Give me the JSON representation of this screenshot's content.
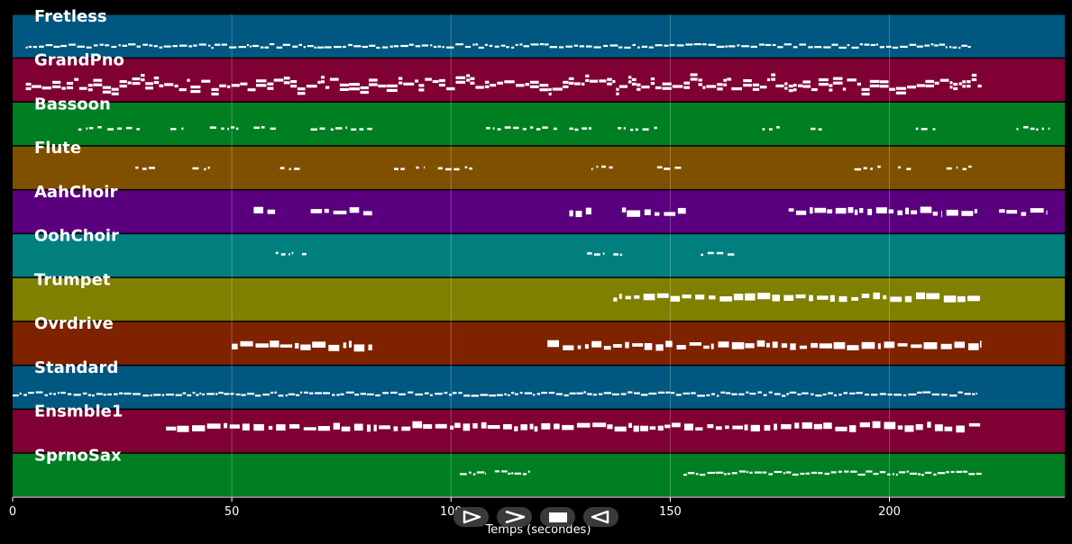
{
  "chart_data": {
    "type": "piano-roll",
    "xlabel": "Temps (secondes)",
    "xlim": [
      0,
      240
    ],
    "x_ticks": [
      0,
      50,
      100,
      150,
      200
    ],
    "grid": true,
    "tracks": [
      {
        "name": "Fretless",
        "color": "#00577f",
        "bands": [
          [
            3,
            219
          ]
        ],
        "style": "thin",
        "lane": 0.72
      },
      {
        "name": "GrandPno",
        "color": "#7f0033",
        "bands": [
          [
            3,
            221
          ]
        ],
        "style": "dense",
        "lane": 0.6
      },
      {
        "name": "Bassoon",
        "color": "#007f22",
        "bands": [
          [
            15,
            29
          ],
          [
            36,
            39
          ],
          [
            45,
            52
          ],
          [
            55,
            60
          ],
          [
            68,
            82
          ],
          [
            108,
            125
          ],
          [
            127,
            132
          ],
          [
            138,
            147
          ],
          [
            171,
            175
          ],
          [
            182,
            186
          ],
          [
            206,
            211
          ],
          [
            229,
            237
          ]
        ],
        "style": "sparse",
        "lane": 0.6
      },
      {
        "name": "Flute",
        "color": "#7f5000",
        "bands": [
          [
            28,
            33
          ],
          [
            41,
            45
          ],
          [
            61,
            66
          ],
          [
            87,
            90
          ],
          [
            92,
            94
          ],
          [
            97,
            105
          ],
          [
            132,
            137
          ],
          [
            147,
            153
          ],
          [
            192,
            198
          ],
          [
            202,
            205
          ],
          [
            213,
            219
          ]
        ],
        "style": "sparse",
        "lane": 0.5
      },
      {
        "name": "AahChoir",
        "color": "#5a007f",
        "bands": [
          [
            55,
            60
          ],
          [
            68,
            82
          ],
          [
            127,
            132
          ],
          [
            139,
            154
          ],
          [
            177,
            194
          ],
          [
            195,
            212
          ],
          [
            213,
            220
          ],
          [
            225,
            236
          ]
        ],
        "style": "block",
        "lane": 0.5
      },
      {
        "name": "OohChoir",
        "color": "#007f7f",
        "bands": [
          [
            60,
            64
          ],
          [
            66,
            67
          ],
          [
            131,
            135
          ],
          [
            137,
            139
          ],
          [
            157,
            165
          ]
        ],
        "style": "sparse",
        "lane": 0.45
      },
      {
        "name": "Trumpet",
        "color": "#7f7f00",
        "bands": [
          [
            137,
            221
          ]
        ],
        "style": "block",
        "lane": 0.45
      },
      {
        "name": "Ovrdrive",
        "color": "#7f2200",
        "bands": [
          [
            50,
            82
          ],
          [
            122,
            221
          ]
        ],
        "style": "block",
        "lane": 0.55
      },
      {
        "name": "Standard",
        "color": "#00577f",
        "bands": [
          [
            0,
            220
          ]
        ],
        "style": "thin",
        "lane": 0.65
      },
      {
        "name": "Ensmble1",
        "color": "#7f0033",
        "bands": [
          [
            35,
            221
          ]
        ],
        "style": "block",
        "lane": 0.4
      },
      {
        "name": "SprnoSax",
        "color": "#007f22",
        "bands": [
          [
            102,
            108
          ],
          [
            110,
            118
          ],
          [
            153,
            221
          ]
        ],
        "style": "thin",
        "lane": 0.45
      }
    ]
  },
  "controls": [
    {
      "name": "play-button",
      "icon": "play-icon"
    },
    {
      "name": "fast-forward-button",
      "icon": "forward-icon"
    },
    {
      "name": "stop-button",
      "icon": "stop-icon"
    },
    {
      "name": "rewind-button",
      "icon": "rewind-icon"
    }
  ]
}
